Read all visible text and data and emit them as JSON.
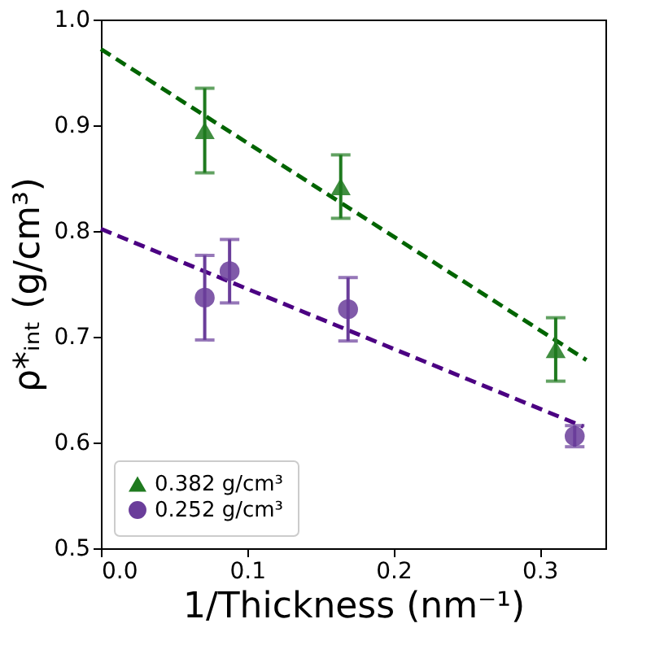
{
  "chart_data": {
    "type": "scatter",
    "xlabel": "1/Thickness (nm⁻¹)",
    "ylabel": "ρ*ᵢₙₜ  (g/cm³)",
    "xlim": [
      0,
      0.345
    ],
    "ylim": [
      0.5,
      1.0
    ],
    "xticks": [
      {
        "value": 0,
        "label": "0.0"
      },
      0.1,
      0.2,
      0.3
    ],
    "yticks": [
      0.5,
      0.6,
      0.7,
      0.8,
      0.9,
      {
        "value": 1,
        "label": "1.0"
      }
    ],
    "legend": "bottom left",
    "grid": false,
    "series": [
      {
        "name": "0.382 g/cm³",
        "marker": "triangle",
        "color": "#1f7a1f",
        "x": [
          0.071,
          0.164,
          0.311
        ],
        "values": [
          0.895,
          0.842,
          0.688
        ],
        "errors": [
          0.04,
          0.03,
          0.03
        ]
      },
      {
        "name": "0.252 g/cm³",
        "marker": "circle",
        "color": "#6a3d9a",
        "x": [
          0.071,
          0.088,
          0.169,
          0.324
        ],
        "values": [
          0.737,
          0.762,
          0.726,
          0.606
        ],
        "errors": [
          0.04,
          0.03,
          0.03,
          0.01
        ]
      },
      {
        "type": "line",
        "line_style": "dashed",
        "color": "#006400",
        "x": [
          0,
          0.332
        ],
        "values": [
          0.972,
          0.678
        ]
      },
      {
        "type": "line",
        "line_style": "dashed",
        "color": "#4b0082",
        "x": [
          0,
          0.33
        ],
        "values": [
          0.802,
          0.615
        ]
      }
    ]
  }
}
